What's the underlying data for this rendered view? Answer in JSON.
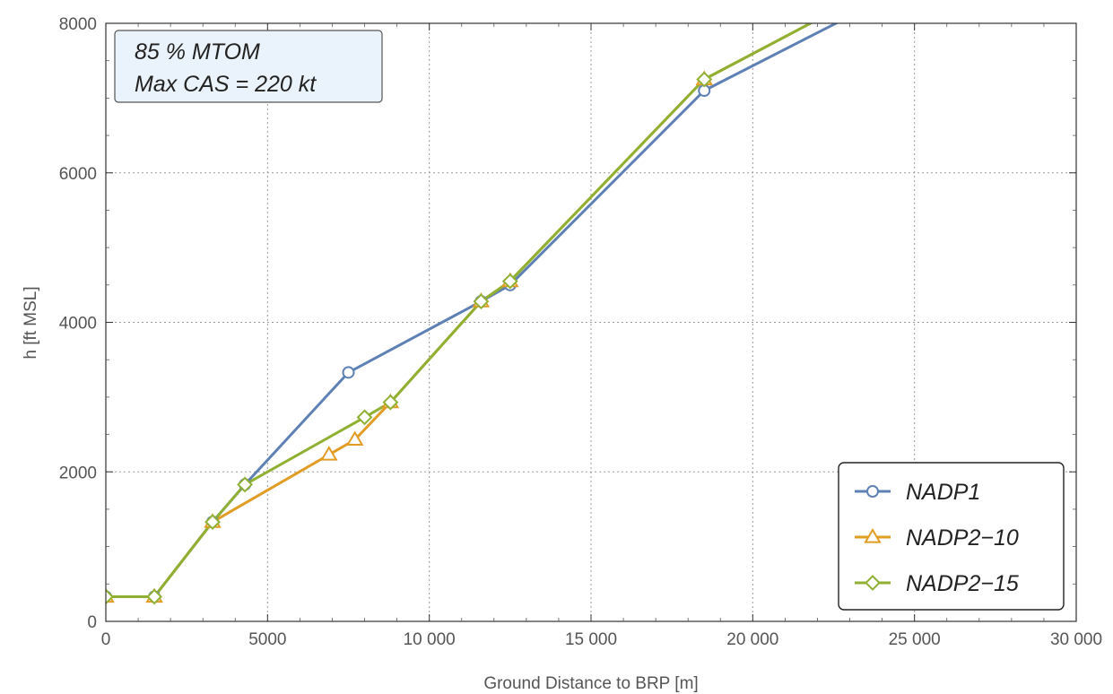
{
  "chart_data": {
    "type": "line",
    "title": "",
    "xlabel": "Ground Distance to BRP [m]",
    "ylabel": "h [ft MSL]",
    "xlim": [
      0,
      30000
    ],
    "ylim": [
      0,
      8000
    ],
    "x_ticks": [
      0,
      5000,
      10000,
      15000,
      20000,
      25000,
      30000
    ],
    "x_tick_labels": [
      "0",
      "5000",
      "10 000",
      "15 000",
      "20 000",
      "25 000",
      "30 000"
    ],
    "y_ticks": [
      0,
      2000,
      4000,
      6000,
      8000
    ],
    "y_tick_labels": [
      "0",
      "2000",
      "4000",
      "6000",
      "8000"
    ],
    "grid": true,
    "legend_position": "bottom-right",
    "annotation": [
      "85 % MTOM",
      "Max CAS = 220 kt"
    ],
    "series": [
      {
        "name": "NADP1",
        "color": "#5e81b5",
        "marker": "circle",
        "points": [
          [
            0,
            330
          ],
          [
            1500,
            330
          ],
          [
            3300,
            1330
          ],
          [
            4300,
            1830
          ],
          [
            7500,
            3330
          ],
          [
            11600,
            4280
          ],
          [
            12500,
            4500
          ],
          [
            18500,
            7100
          ],
          [
            22800,
            8050
          ]
        ]
      },
      {
        "name": "NADP2−10",
        "color": "#e19c24",
        "marker": "triangle",
        "points": [
          [
            0,
            330
          ],
          [
            1500,
            330
          ],
          [
            3300,
            1330
          ],
          [
            6900,
            2230
          ],
          [
            7700,
            2430
          ],
          [
            8800,
            2930
          ],
          [
            11600,
            4280
          ],
          [
            12500,
            4550
          ],
          [
            18500,
            7250
          ],
          [
            22000,
            8050
          ]
        ]
      },
      {
        "name": "NADP2−15",
        "color": "#8fb032",
        "marker": "diamond",
        "points": [
          [
            0,
            330
          ],
          [
            1500,
            330
          ],
          [
            3300,
            1330
          ],
          [
            4300,
            1830
          ],
          [
            8000,
            2730
          ],
          [
            8800,
            2930
          ],
          [
            11600,
            4280
          ],
          [
            12500,
            4550
          ],
          [
            18500,
            7250
          ],
          [
            22000,
            8050
          ]
        ]
      }
    ]
  }
}
